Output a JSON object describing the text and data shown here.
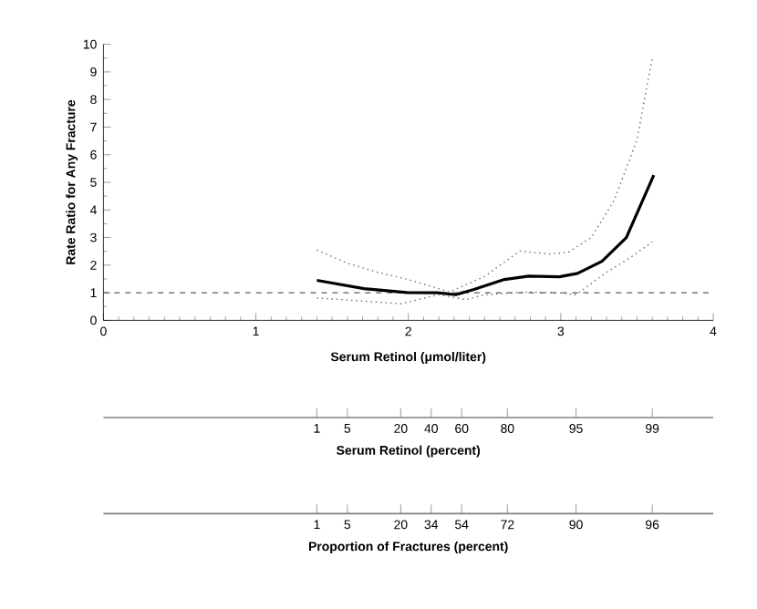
{
  "chart_data": [
    {
      "type": "line",
      "ylabel": "Rate Ratio for Any Fracture",
      "xlabel": "Serum Retinol (μmol/liter)",
      "xlim": [
        0,
        4
      ],
      "ylim": [
        0,
        10
      ],
      "xticks": [
        0,
        1,
        2,
        3,
        4
      ],
      "yticks": [
        0,
        1,
        2,
        3,
        4,
        5,
        6,
        7,
        8,
        9,
        10
      ],
      "series": [
        {
          "color": "#000000",
          "line_style": "solid",
          "x": [
            1.4,
            1.71,
            1.99,
            2.19,
            2.31,
            2.43,
            2.63,
            2.79,
            2.99,
            3.11,
            3.27,
            3.43,
            3.61
          ],
          "values": [
            1.45,
            1.15,
            1.01,
            1.0,
            0.93,
            1.12,
            1.48,
            1.6,
            1.58,
            1.7,
            2.14,
            3.0,
            5.26
          ]
        },
        {
          "color": "#666666",
          "line_style": "dotted",
          "x": [
            1.4,
            1.6,
            1.8,
            2.0,
            2.27,
            2.5,
            2.73,
            2.93,
            3.05,
            3.2,
            3.35,
            3.5,
            3.6
          ],
          "values": [
            2.55,
            2.07,
            1.74,
            1.48,
            1.03,
            1.59,
            2.51,
            2.4,
            2.47,
            3.0,
            4.34,
            6.54,
            9.5
          ]
        },
        {
          "color": "#666666",
          "line_style": "dotted",
          "x": [
            1.4,
            1.7,
            1.95,
            2.2,
            2.38,
            2.5,
            2.8,
            3.0,
            3.1,
            3.3,
            3.45,
            3.6
          ],
          "values": [
            0.81,
            0.7,
            0.6,
            0.93,
            0.75,
            0.93,
            1.03,
            0.99,
            0.93,
            1.74,
            2.25,
            2.84
          ]
        }
      ],
      "ref_lines": [
        {
          "axis": "y",
          "value": 1,
          "line_style": "dashed",
          "color": "#333333"
        }
      ]
    },
    {
      "type": "other",
      "xlabel": "Serum Retinol (percent)",
      "categories": [
        null,
        null,
        null,
        null,
        null,
        null,
        null,
        null,
        null,
        null,
        null,
        null,
        null,
        null,
        null,
        null,
        null,
        null,
        null,
        null,
        null,
        null,
        null,
        null,
        null,
        null,
        null,
        null,
        "1",
        null,
        null,
        null,
        "5",
        null,
        null,
        null,
        null,
        null,
        null,
        "20",
        null,
        null,
        null,
        "40",
        null,
        null,
        null,
        "60",
        null,
        null,
        null,
        null,
        null,
        "80",
        null,
        null,
        null,
        null,
        null,
        null,
        null,
        null,
        "95",
        null,
        null,
        null,
        null,
        null,
        null,
        null,
        null,
        null,
        "99",
        null,
        null,
        null,
        null,
        null,
        null,
        null,
        null
      ]
    },
    {
      "type": "other",
      "xlabel": "Proportion of Fractures (percent)",
      "categories": [
        null,
        null,
        null,
        null,
        null,
        null,
        null,
        null,
        null,
        null,
        null,
        null,
        null,
        null,
        null,
        null,
        null,
        null,
        null,
        null,
        null,
        null,
        null,
        null,
        null,
        null,
        null,
        null,
        "1",
        null,
        null,
        null,
        "5",
        null,
        null,
        null,
        null,
        null,
        null,
        "20",
        null,
        null,
        null,
        "34",
        null,
        null,
        null,
        "54",
        null,
        null,
        null,
        null,
        null,
        "72",
        null,
        null,
        null,
        null,
        null,
        null,
        null,
        null,
        "90",
        null,
        null,
        null,
        null,
        null,
        null,
        null,
        null,
        null,
        "96",
        null,
        null,
        null,
        null,
        null,
        null,
        null,
        null
      ]
    }
  ]
}
